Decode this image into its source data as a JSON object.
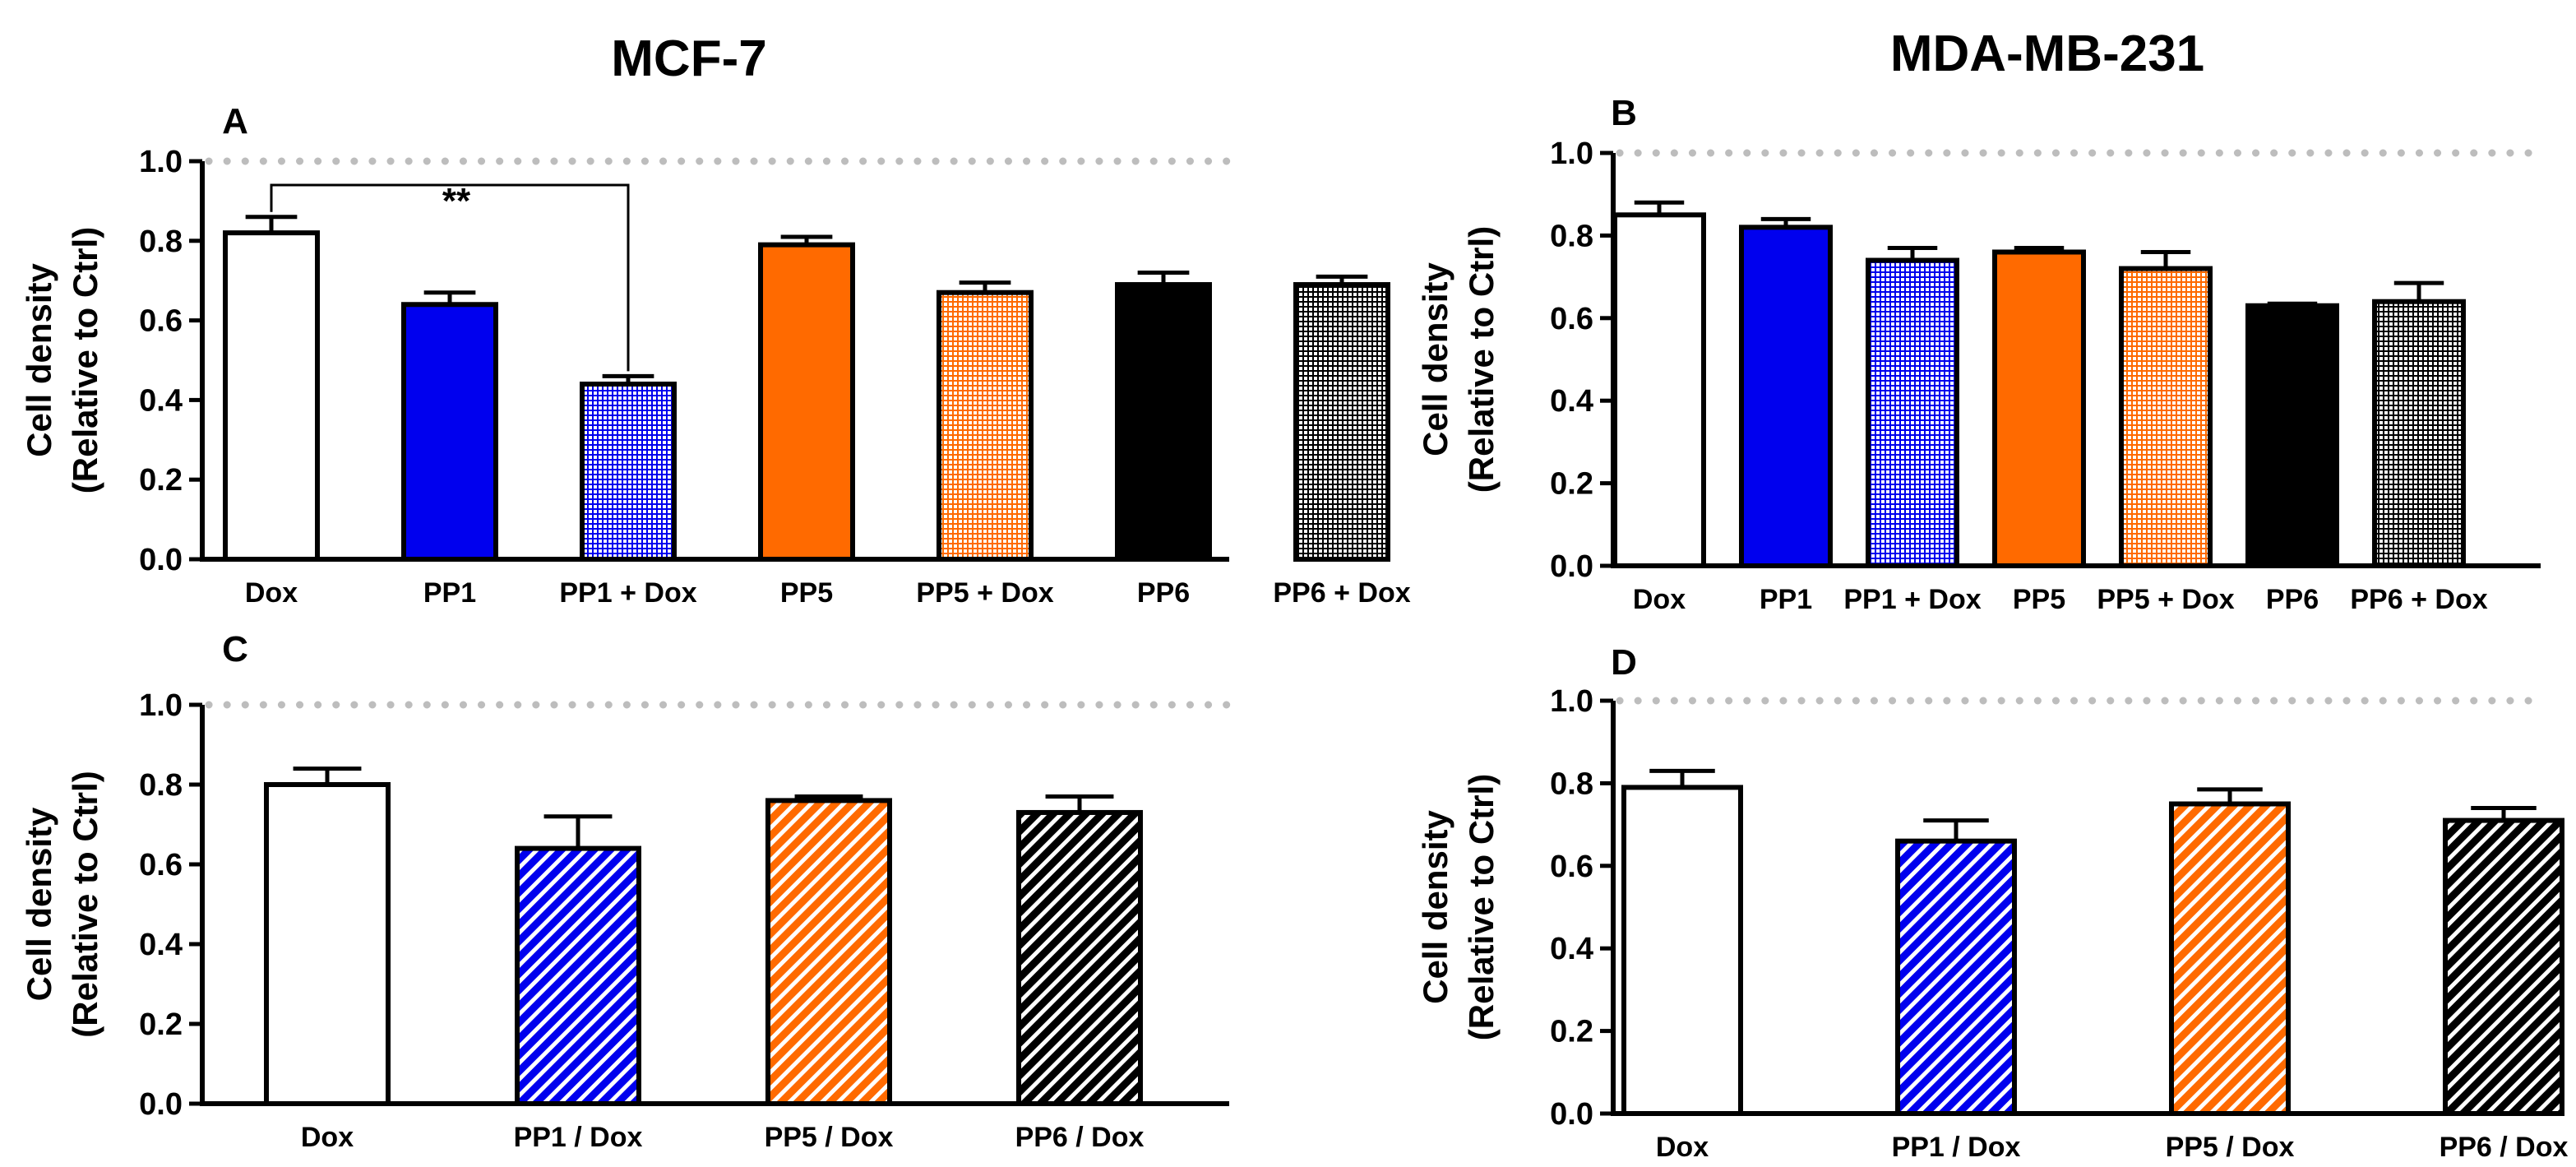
{
  "header": {
    "left_title": "MCF-7",
    "right_title": "MDA-MB-231"
  },
  "fills": {
    "white": "#ffffff",
    "blue": "#0000ee",
    "orange": "#ff6a00",
    "black": "#000000",
    "grid_dots": "#bdbdbd"
  },
  "chart_data": [
    {
      "panel": "A",
      "type": "bar",
      "ylabel_line1": "Cell density",
      "ylabel_line2": "(Relative to Ctrl)",
      "ylim": [
        0,
        1.0
      ],
      "yticks": [
        "0.0",
        "0.2",
        "0.4",
        "0.6",
        "0.8",
        "1.0"
      ],
      "reference_line": 1.0,
      "categories": [
        "Dox",
        "PP1",
        "PP1 + Dox",
        "PP5",
        "PP5 + Dox",
        "PP6",
        "PP6 + Dox"
      ],
      "values": [
        0.82,
        0.64,
        0.44,
        0.79,
        0.67,
        0.69,
        0.69
      ],
      "errors": [
        0.04,
        0.03,
        0.02,
        0.02,
        0.025,
        0.03,
        0.02
      ],
      "patterns": [
        "white",
        "blue-solid",
        "blue-grid",
        "orange-solid",
        "orange-grid",
        "black-solid",
        "black-grid"
      ],
      "significance": {
        "from": 0,
        "to": 2,
        "label": "**"
      }
    },
    {
      "panel": "B",
      "type": "bar",
      "ylabel_line1": "Cell density",
      "ylabel_line2": "(Relative to Ctrl)",
      "ylim": [
        0,
        1.0
      ],
      "yticks": [
        "0.0",
        "0.2",
        "0.4",
        "0.6",
        "0.8",
        "1.0"
      ],
      "reference_line": 1.0,
      "categories": [
        "Dox",
        "PP1",
        "PP1 + Dox",
        "PP5",
        "PP5 + Dox",
        "PP6",
        "PP6 + Dox"
      ],
      "values": [
        0.85,
        0.82,
        0.74,
        0.76,
        0.72,
        0.63,
        0.64
      ],
      "errors": [
        0.03,
        0.02,
        0.03,
        0.01,
        0.04,
        0.005,
        0.045
      ],
      "patterns": [
        "white",
        "blue-solid",
        "blue-grid",
        "orange-solid",
        "orange-grid",
        "black-solid",
        "black-grid"
      ]
    },
    {
      "panel": "C",
      "type": "bar",
      "ylabel_line1": "Cell density",
      "ylabel_line2": "(Relative to Ctrl)",
      "ylim": [
        0,
        1.0
      ],
      "yticks": [
        "0.0",
        "0.2",
        "0.4",
        "0.6",
        "0.8",
        "1.0"
      ],
      "reference_line": 1.0,
      "categories": [
        "Dox",
        "PP1 / Dox",
        "PP5 / Dox",
        "PP6 / Dox"
      ],
      "values": [
        0.8,
        0.64,
        0.76,
        0.73
      ],
      "errors": [
        0.04,
        0.08,
        0.01,
        0.04
      ],
      "patterns": [
        "white",
        "blue-diag",
        "orange-diag",
        "black-diag"
      ]
    },
    {
      "panel": "D",
      "type": "bar",
      "ylabel_line1": "Cell density",
      "ylabel_line2": "(Relative to Ctrl)",
      "ylim": [
        0,
        1.0
      ],
      "yticks": [
        "0.0",
        "0.2",
        "0.4",
        "0.6",
        "0.8",
        "1.0"
      ],
      "reference_line": 1.0,
      "categories": [
        "Dox",
        "PP1 / Dox",
        "PP5 / Dox",
        "PP6 / Dox"
      ],
      "values": [
        0.79,
        0.66,
        0.75,
        0.71
      ],
      "errors": [
        0.04,
        0.05,
        0.035,
        0.03
      ],
      "patterns": [
        "white",
        "blue-diag",
        "orange-diag",
        "black-diag"
      ]
    }
  ]
}
